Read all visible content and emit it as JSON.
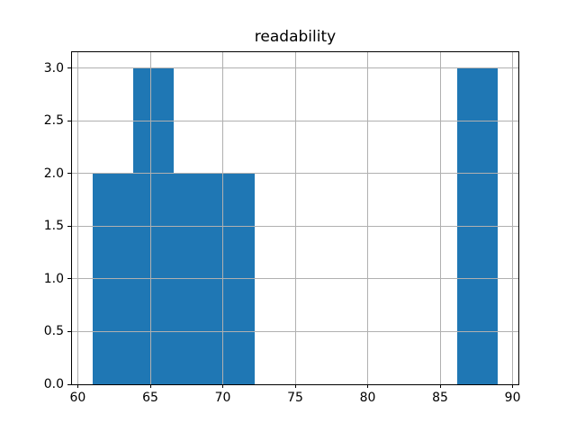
{
  "chart_data": {
    "type": "bar",
    "subtype": "histogram",
    "title": "readability",
    "xlabel": "",
    "ylabel": "",
    "bin_edges": [
      61.0,
      63.8,
      66.6,
      69.4,
      72.2,
      75.0,
      77.8,
      80.6,
      83.4,
      86.2,
      89.0
    ],
    "counts": [
      2,
      3,
      2,
      2,
      0,
      0,
      0,
      0,
      0,
      3
    ],
    "x_ticks": [
      60,
      65,
      70,
      75,
      80,
      85,
      90
    ],
    "x_tick_labels": [
      "60",
      "65",
      "70",
      "75",
      "80",
      "85",
      "90"
    ],
    "y_ticks": [
      0.0,
      0.5,
      1.0,
      1.5,
      2.0,
      2.5,
      3.0
    ],
    "y_tick_labels": [
      "0.0",
      "0.5",
      "1.0",
      "1.5",
      "2.0",
      "2.5",
      "3.0"
    ],
    "xlim": [
      59.6,
      90.4
    ],
    "ylim": [
      0.0,
      3.15
    ],
    "grid": true,
    "grid_above_bars": true,
    "legend": null,
    "colors": {
      "bar": "#1f77b4",
      "grid": "#b0b0b0",
      "spine": "#000000",
      "text": "#000000",
      "background": "#ffffff"
    }
  }
}
